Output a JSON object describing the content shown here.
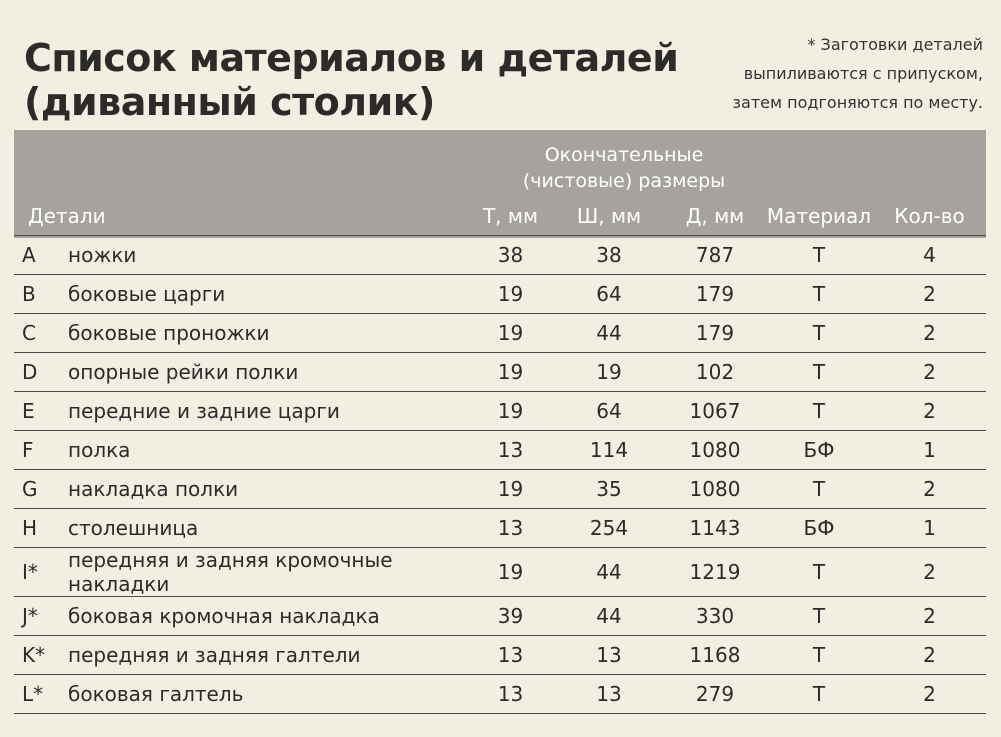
{
  "header": {
    "title_lines": [
      "Список материалов и деталей",
      "(диванный столик)"
    ],
    "note_lines": [
      "* Заготовки деталей",
      "выпиливаются с припуском,",
      "затем подгоняются по месту."
    ]
  },
  "table": {
    "group_header_lines": [
      "Окончательные",
      "(чистовые) размеры"
    ],
    "columns": [
      "Детали",
      "Т, мм",
      "Ш, мм",
      "Д, мм",
      "Материал",
      "Кол-во"
    ],
    "rows": [
      [
        "A",
        "ножки",
        38,
        38,
        787,
        "Т",
        4
      ],
      [
        "B",
        "боковые царги",
        19,
        64,
        179,
        "Т",
        2
      ],
      [
        "C",
        "боковые проножки",
        19,
        44,
        179,
        "Т",
        2
      ],
      [
        "D",
        "опорные рейки полки",
        19,
        19,
        102,
        "Т",
        2
      ],
      [
        "E",
        "передние и задние царги",
        19,
        64,
        1067,
        "Т",
        2
      ],
      [
        "F",
        "полка",
        13,
        114,
        1080,
        "БФ",
        1
      ],
      [
        "G",
        "накладка полки",
        19,
        35,
        1080,
        "Т",
        2
      ],
      [
        "H",
        "столешница",
        13,
        254,
        1143,
        "БФ",
        1
      ],
      [
        "I*",
        "передняя и задняя кромочные накладки",
        19,
        44,
        1219,
        "Т",
        2
      ],
      [
        "J*",
        "боковая кромочная накладка",
        39,
        44,
        330,
        "Т",
        2
      ],
      [
        "K*",
        "передняя и задняя галтели",
        13,
        13,
        1168,
        "Т",
        2
      ],
      [
        "L*",
        "боковая галтель",
        13,
        13,
        279,
        "Т",
        2
      ]
    ]
  }
}
